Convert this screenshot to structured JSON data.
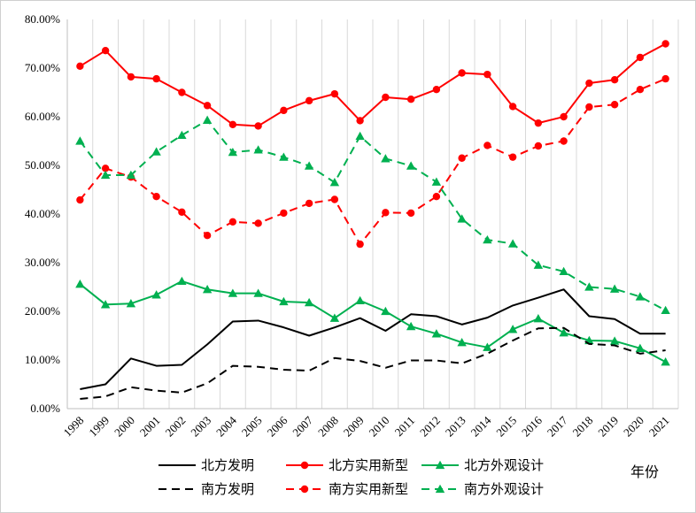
{
  "chart_data": {
    "type": "line",
    "title": "",
    "xlabel": "年份",
    "ylabel": "",
    "x": [
      "1998",
      "1999",
      "2000",
      "2001",
      "2002",
      "2003",
      "2004",
      "2005",
      "2006",
      "2007",
      "2008",
      "2009",
      "2010",
      "2011",
      "2012",
      "2013",
      "2014",
      "2015",
      "2016",
      "2017",
      "2018",
      "2019",
      "2020",
      "2021"
    ],
    "ylim": [
      0,
      80
    ],
    "yticks": [
      "0.00%",
      "10.00%",
      "20.00%",
      "30.00%",
      "40.00%",
      "50.00%",
      "60.00%",
      "70.00%",
      "80.00%"
    ],
    "grid": "vertical",
    "legend_position": "bottom",
    "series": [
      {
        "name": "北方发明",
        "color": "#000000",
        "dash": "solid",
        "marker": "none",
        "values": [
          4.0,
          5.0,
          10.3,
          8.8,
          9.0,
          13.2,
          17.9,
          18.1,
          16.7,
          15.0,
          16.7,
          18.6,
          16.0,
          19.4,
          19.0,
          17.3,
          18.7,
          21.2,
          22.8,
          24.5,
          19.0,
          18.4,
          15.4,
          15.4
        ]
      },
      {
        "name": "北方实用新型",
        "color": "#ff0000",
        "dash": "solid",
        "marker": "circle",
        "values": [
          70.4,
          73.6,
          68.2,
          67.8,
          65.0,
          62.3,
          58.4,
          58.1,
          61.3,
          63.3,
          64.7,
          59.2,
          64.0,
          63.6,
          65.6,
          69.0,
          68.7,
          62.1,
          58.7,
          60.0,
          66.9,
          67.6,
          72.2,
          75.0
        ]
      },
      {
        "name": "北方外观设计",
        "color": "#00b050",
        "dash": "solid",
        "marker": "triangle",
        "values": [
          25.6,
          21.4,
          21.6,
          23.4,
          26.2,
          24.5,
          23.7,
          23.7,
          22.0,
          21.8,
          18.6,
          22.2,
          20.0,
          16.9,
          15.4,
          13.6,
          12.6,
          16.3,
          18.5,
          15.6,
          14.0,
          13.9,
          12.4,
          9.6
        ]
      },
      {
        "name": "南方发明",
        "color": "#000000",
        "dash": "dashed",
        "marker": "none",
        "values": [
          2.0,
          2.5,
          4.4,
          3.7,
          3.3,
          5.2,
          8.8,
          8.6,
          8.0,
          7.8,
          10.4,
          9.8,
          8.4,
          9.9,
          9.9,
          9.3,
          11.3,
          14.0,
          16.5,
          16.6,
          13.3,
          13.0,
          11.3,
          12.0
        ]
      },
      {
        "name": "南方实用新型",
        "color": "#ff0000",
        "dash": "dashed",
        "marker": "circle",
        "values": [
          42.9,
          49.4,
          47.6,
          43.6,
          40.4,
          35.6,
          38.4,
          38.1,
          40.2,
          42.2,
          43.0,
          33.8,
          40.3,
          40.2,
          43.6,
          51.5,
          54.1,
          51.7,
          54.0,
          55.0,
          62.0,
          62.5,
          65.6,
          67.8
        ]
      },
      {
        "name": "南方外观设计",
        "color": "#00b050",
        "dash": "dashed",
        "marker": "triangle",
        "values": [
          55.0,
          48.0,
          48.0,
          52.8,
          56.2,
          59.3,
          52.7,
          53.2,
          51.7,
          49.9,
          46.5,
          56.0,
          51.4,
          49.9,
          46.6,
          39.0,
          34.7,
          33.9,
          29.5,
          28.2,
          25.0,
          24.6,
          23.0,
          20.2
        ]
      }
    ]
  }
}
